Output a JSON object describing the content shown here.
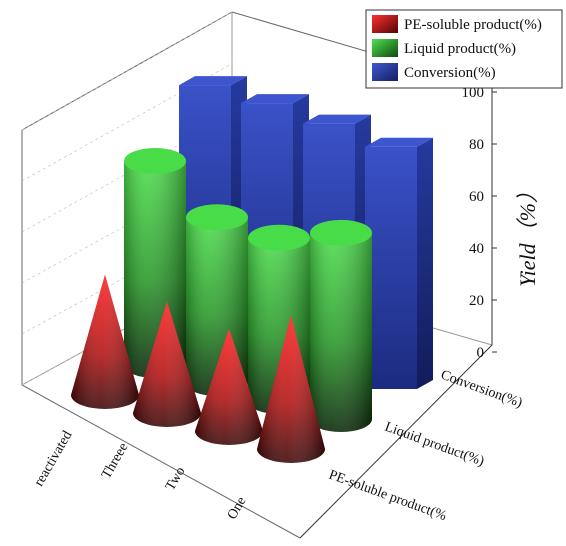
{
  "chart_data": {
    "type": "bar",
    "title": "",
    "categories": [
      "reactivated",
      "Threee",
      "Two",
      "One"
    ],
    "series": [
      {
        "name": "PE-soluble product(%)",
        "shape": "cone",
        "color": "#d01818",
        "values": [
          27,
          25,
          23,
          30
        ]
      },
      {
        "name": "Liquid product(%)",
        "shape": "cylinder",
        "color": "#3fd23f",
        "values": [
          80,
          65,
          64,
          73
        ]
      },
      {
        "name": "Conversion(%)",
        "shape": "block",
        "color": "#2f46b8",
        "values": [
          98,
          98,
          97,
          95
        ]
      }
    ],
    "z_tick_labels": [
      "PE-soluble product(%",
      "Liquid product(%)",
      "Conversion(%)"
    ],
    "ylabel": "Yield（%）",
    "ylim": [
      0,
      100
    ],
    "yticks": [
      "0",
      "20",
      "40",
      "60",
      "80",
      "100"
    ],
    "legend_position": "top-right",
    "grid": true
  }
}
